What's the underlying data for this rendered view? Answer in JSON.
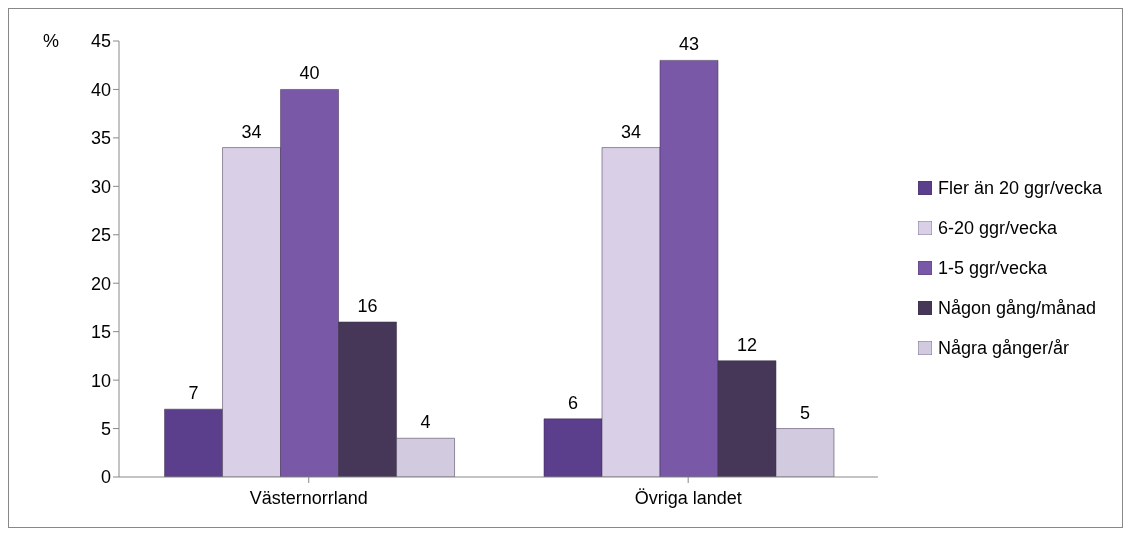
{
  "chart_data": {
    "type": "bar",
    "ylabel": "%",
    "categories": [
      "Västernorrland",
      "Övriga landet"
    ],
    "series": [
      {
        "name": "Fler än 20 ggr/vecka",
        "color": "#5b3f8c",
        "values": [
          7,
          6
        ]
      },
      {
        "name": "6-20 ggr/vecka",
        "color": "#d9d0e8",
        "values": [
          34,
          34
        ]
      },
      {
        "name": "1-5 ggr/vecka",
        "color": "#7a58a8",
        "values": [
          40,
          43
        ]
      },
      {
        "name": "Någon gång/månad",
        "color": "#463758",
        "values": [
          16,
          12
        ]
      },
      {
        "name": "Några gånger/år",
        "color": "#d2cadf",
        "values": [
          4,
          5
        ]
      }
    ],
    "ylim": [
      0,
      45
    ],
    "yticks": [
      0,
      5,
      10,
      15,
      20,
      25,
      30,
      35,
      40,
      45
    ],
    "grid": false,
    "legend": "right",
    "data_labels": true
  }
}
